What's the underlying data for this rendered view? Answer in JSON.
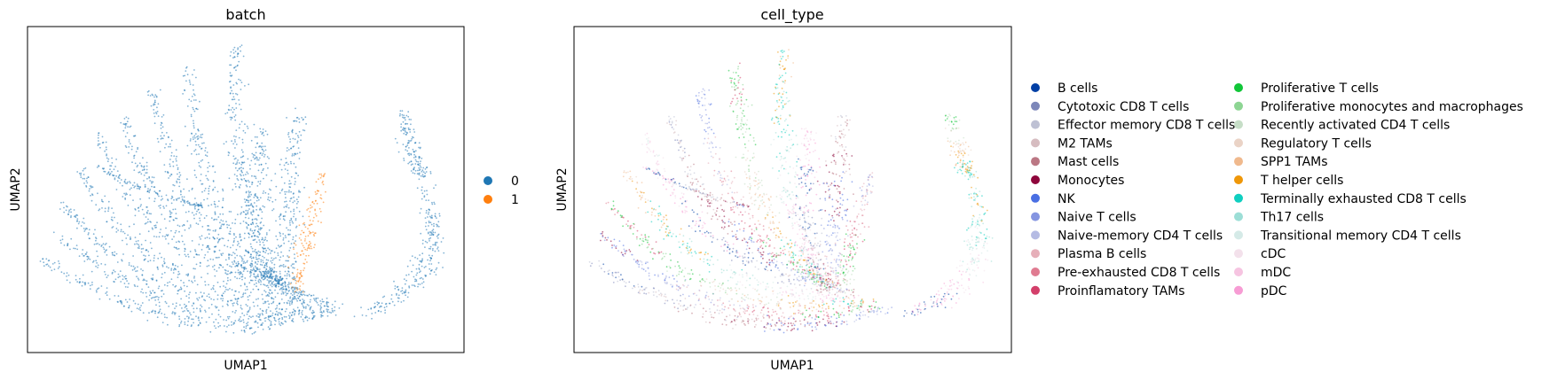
{
  "chart_data": [
    {
      "type": "scatter",
      "title": "batch",
      "xlabel": "UMAP1",
      "ylabel": "UMAP2",
      "grid": false,
      "legend_position": "right",
      "series": [
        {
          "name": "0",
          "color": "#1f77b4"
        },
        {
          "name": "1",
          "color": "#ff7f0e"
        }
      ]
    },
    {
      "type": "scatter",
      "title": "cell_type",
      "xlabel": "UMAP1",
      "ylabel": "UMAP2",
      "grid": false,
      "legend_position": "right",
      "series": [
        {
          "name": "B cells",
          "color": "#023fa5"
        },
        {
          "name": "Cytotoxic CD8 T cells",
          "color": "#7d87b9"
        },
        {
          "name": "Effector memory CD8 T cells",
          "color": "#bec1d4"
        },
        {
          "name": "M2 TAMs",
          "color": "#d6bcc0"
        },
        {
          "name": "Mast cells",
          "color": "#bb7784"
        },
        {
          "name": "Monocytes",
          "color": "#8e063b"
        },
        {
          "name": "NK",
          "color": "#4a6fe3"
        },
        {
          "name": "Naive T cells",
          "color": "#8595e1"
        },
        {
          "name": "Naive-memory CD4 T cells",
          "color": "#b5bbe3"
        },
        {
          "name": "Plasma B cells",
          "color": "#e6afb9"
        },
        {
          "name": "Pre-exhausted CD8 T cells",
          "color": "#e07b91"
        },
        {
          "name": "Proinflamatory TAMs",
          "color": "#d33f6a"
        },
        {
          "name": "Proliferative T cells",
          "color": "#11c638"
        },
        {
          "name": "Proliferative monocytes and macrophages",
          "color": "#8dd593"
        },
        {
          "name": "Recently activated CD4 T cells",
          "color": "#c6dec7"
        },
        {
          "name": "Regulatory T cells",
          "color": "#ead3c6"
        },
        {
          "name": "SPP1 TAMs",
          "color": "#f0b98d"
        },
        {
          "name": "T helper cells",
          "color": "#ef9708"
        },
        {
          "name": "Terminally exhausted CD8 T cells",
          "color": "#0fcfc0"
        },
        {
          "name": "Th17 cells",
          "color": "#9cded6"
        },
        {
          "name": "Transitional memory CD4 T cells",
          "color": "#d5eae7"
        },
        {
          "name": "cDC",
          "color": "#f3e1eb"
        },
        {
          "name": "mDC",
          "color": "#f6c4e1"
        },
        {
          "name": "pDC",
          "color": "#f79cd4"
        }
      ]
    }
  ]
}
